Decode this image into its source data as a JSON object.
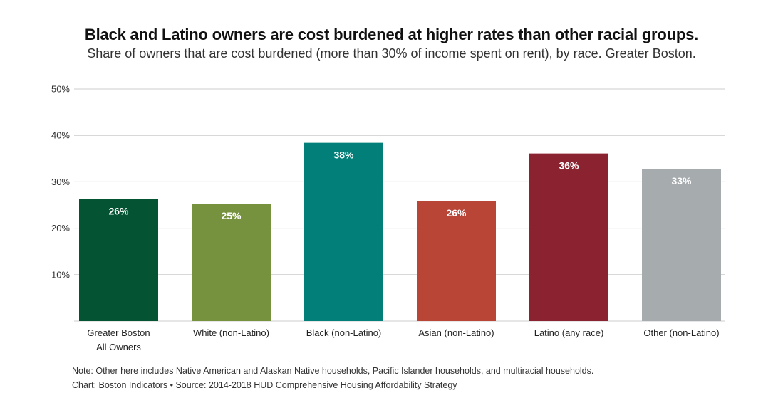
{
  "title": "Black and Latino owners are cost burdened at higher rates than other racial groups.",
  "subtitle": "Share of owners that are cost burdened (more than 30% of income spent on rent), by race. Greater Boston.",
  "note": "Note: Other here includes Native American and Alaskan Native households, Pacific Islander households, and multiracial households.",
  "credit": "Chart: Boston Indicators • Source: 2014-2018 HUD Comprehensive Housing Affordability Strategy",
  "chart_data": {
    "type": "bar",
    "title": "Black and Latino owners are cost burdened at higher rates than other racial groups.",
    "subtitle": "Share of owners that are cost burdened (more than 30% of income spent on rent), by race. Greater Boston.",
    "xlabel": "",
    "ylabel": "",
    "ylim": [
      0,
      50
    ],
    "yticks": [
      10,
      20,
      30,
      40,
      50
    ],
    "ytick_labels": [
      "10%",
      "20%",
      "30%",
      "40%",
      "50%"
    ],
    "grid": true,
    "categories": [
      [
        "Greater Boston",
        "All Owners"
      ],
      [
        "White (non-Latino)"
      ],
      [
        "Black (non-Latino)"
      ],
      [
        "Asian (non-Latino)"
      ],
      [
        "Latino (any race)"
      ],
      [
        "Other (non-Latino)"
      ]
    ],
    "values": [
      26.3,
      25.3,
      38.4,
      25.9,
      36.1,
      32.8
    ],
    "value_labels": [
      "26%",
      "25%",
      "38%",
      "26%",
      "36%",
      "33%"
    ],
    "colors": [
      "#045433",
      "#76923e",
      "#017f78",
      "#b94537",
      "#8b2230",
      "#a6abae"
    ],
    "gridline_color": "#cccccc"
  }
}
